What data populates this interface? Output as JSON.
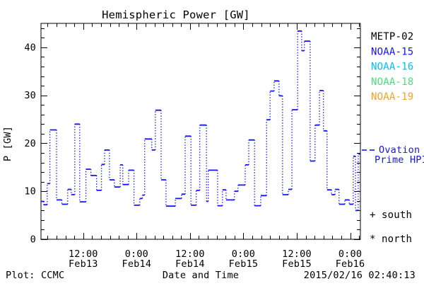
{
  "title": "Hemispheric Power [GW]",
  "ylabel": "P [GW]",
  "footer": {
    "left": "Plot: CCMC",
    "center": "Date and Time",
    "right": "2015/02/16 02:40:13"
  },
  "legend": {
    "satellites": [
      {
        "label": "METP-02",
        "color": "#000000"
      },
      {
        "label": "NOAA-15",
        "color": "#1414ff"
      },
      {
        "label": "NOAA-16",
        "color": "#00bfff"
      },
      {
        "label": "NOAA-18",
        "color": "#4fdc7a"
      },
      {
        "label": "NOAA-19",
        "color": "#ffa01e"
      }
    ],
    "ovation": {
      "line1": "Ovation",
      "line2": "Prime HPI",
      "color": "#1414ff"
    },
    "south": {
      "marker": "+",
      "label": "south"
    },
    "north": {
      "marker": "*",
      "label": "north"
    }
  },
  "chart_data": {
    "type": "line",
    "style": "step",
    "title": "Hemispheric Power [GW]",
    "xlabel": "Date and Time",
    "ylabel": "P [GW]",
    "line_color": "#1414ff",
    "grid": false,
    "ylim": [
      0,
      45
    ],
    "y_major_ticks": [
      0,
      10,
      20,
      30,
      40
    ],
    "y_minor_step": 2,
    "hours_reference": "hours since 2015-02-13 00:00 UT",
    "x_range_hours": [
      2.5,
      74.3
    ],
    "x_minor_step_hours": 2,
    "x_major_ticks": [
      {
        "h": 12,
        "time": "12:00",
        "date": "Feb13"
      },
      {
        "h": 24,
        "time": "0:00",
        "date": "Feb14"
      },
      {
        "h": 36,
        "time": "12:00",
        "date": "Feb14"
      },
      {
        "h": 48,
        "time": "0:00",
        "date": "Feb15"
      },
      {
        "h": 60,
        "time": "12:00",
        "date": "Feb15"
      },
      {
        "h": 72,
        "time": "0:00",
        "date": "Feb16"
      }
    ],
    "series": [
      {
        "name": "Ovation Prime HPI",
        "units": "GW",
        "steps": [
          [
            2.5,
            7.9
          ],
          [
            3.1,
            7.2
          ],
          [
            3.9,
            11.6
          ],
          [
            4.5,
            22.8
          ],
          [
            6.0,
            8.2
          ],
          [
            7.2,
            7.3
          ],
          [
            8.5,
            10.4
          ],
          [
            9.3,
            9.3
          ],
          [
            10.1,
            24.0
          ],
          [
            11.2,
            7.8
          ],
          [
            12.6,
            14.6
          ],
          [
            13.7,
            13.3
          ],
          [
            15.0,
            10.2
          ],
          [
            16.1,
            15.6
          ],
          [
            16.8,
            18.6
          ],
          [
            17.9,
            12.4
          ],
          [
            19.0,
            10.9
          ],
          [
            20.3,
            15.5
          ],
          [
            20.9,
            11.4
          ],
          [
            22.2,
            14.4
          ],
          [
            23.4,
            7.1
          ],
          [
            24.7,
            8.5
          ],
          [
            25.3,
            9.2
          ],
          [
            25.8,
            20.9
          ],
          [
            27.4,
            18.6
          ],
          [
            28.2,
            26.9
          ],
          [
            29.5,
            12.4
          ],
          [
            30.6,
            6.9
          ],
          [
            32.7,
            8.5
          ],
          [
            34.1,
            9.4
          ],
          [
            34.9,
            21.5
          ],
          [
            36.2,
            7.1
          ],
          [
            37.4,
            10.2
          ],
          [
            38.2,
            23.8
          ],
          [
            39.7,
            7.9
          ],
          [
            40.1,
            14.4
          ],
          [
            42.2,
            7.0
          ],
          [
            43.3,
            10.3
          ],
          [
            44.1,
            8.2
          ],
          [
            46.0,
            10.0
          ],
          [
            46.8,
            11.3
          ],
          [
            48.4,
            15.5
          ],
          [
            49.2,
            20.7
          ],
          [
            50.5,
            7.0
          ],
          [
            51.9,
            9.1
          ],
          [
            53.2,
            24.9
          ],
          [
            54.0,
            30.9
          ],
          [
            54.9,
            33.0
          ],
          [
            56.0,
            29.9
          ],
          [
            56.8,
            9.3
          ],
          [
            58.1,
            10.4
          ],
          [
            58.9,
            27.0
          ],
          [
            60.2,
            43.4
          ],
          [
            61.1,
            39.3
          ],
          [
            61.7,
            41.3
          ],
          [
            63.0,
            16.3
          ],
          [
            64.1,
            23.8
          ],
          [
            65.1,
            31.0
          ],
          [
            66.0,
            22.6
          ],
          [
            66.8,
            10.3
          ],
          [
            67.8,
            9.3
          ],
          [
            68.6,
            10.4
          ],
          [
            69.5,
            7.3
          ],
          [
            70.8,
            8.2
          ],
          [
            71.8,
            7.3
          ],
          [
            72.7,
            17.3
          ],
          [
            73.2,
            6.0
          ],
          [
            73.8,
            17.8
          ]
        ]
      }
    ]
  }
}
